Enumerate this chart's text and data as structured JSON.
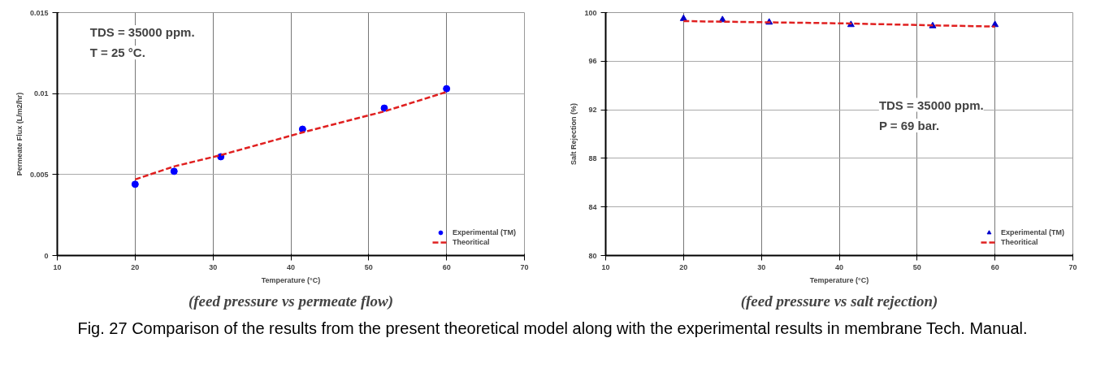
{
  "chart_data": [
    {
      "type": "scatter",
      "xlabel": "Temperature (°C)",
      "ylabel": "Permeate Flux (L/m2/hr)",
      "xlim": [
        10,
        70
      ],
      "xticks": [
        10,
        20,
        30,
        40,
        50,
        60,
        70
      ],
      "ylim": [
        0,
        0.015
      ],
      "yticks": [
        0,
        0.005,
        0.01,
        0.015
      ],
      "grid": true,
      "legend": "bottom right",
      "annotations": [
        "TDS = 35000 ppm.",
        "T = 25 °C.",
        "(feed pressure vs permeate flow)"
      ],
      "series": [
        {
          "name": "Experimental (TM)",
          "marker": "circle",
          "color": "#0000ff",
          "x": [
            20,
            25,
            31,
            41.5,
            52,
            60
          ],
          "values": [
            0.0044,
            0.0052,
            0.0061,
            0.0078,
            0.0091,
            0.0103
          ]
        },
        {
          "name": "Theoritical",
          "type": "line",
          "line_style": "dashed",
          "color": "#e02020",
          "x": [
            20,
            25,
            31,
            41.5,
            52,
            60
          ],
          "values": [
            0.0047,
            0.0055,
            0.0062,
            0.0076,
            0.0089,
            0.0101
          ]
        }
      ]
    },
    {
      "type": "scatter",
      "xlabel": "Temperature (°C)",
      "ylabel": "Salt Rejection (%)",
      "xlim": [
        10,
        70
      ],
      "xticks": [
        10,
        20,
        30,
        40,
        50,
        60,
        70
      ],
      "ylim": [
        80,
        100
      ],
      "yticks": [
        80,
        84,
        88,
        92,
        96,
        100
      ],
      "grid": true,
      "legend": "bottom right",
      "annotations": [
        "TDS = 35000 ppm.",
        "P = 69 bar.",
        "(feed pressure vs salt rejection)",
        "Fig. 27 Comparison of the results from the present theoretical model along with the experimental results in membrane Tech. Manual."
      ],
      "series": [
        {
          "name": "Experimental (TM)",
          "marker": "triangle",
          "color": "#0000cc",
          "x": [
            20,
            25,
            31,
            41.5,
            52,
            60
          ],
          "values": [
            99.5,
            99.4,
            99.2,
            99.0,
            98.9,
            99.0
          ]
        },
        {
          "name": "Theoritical",
          "type": "line",
          "line_style": "dashed",
          "color": "#e02020",
          "x": [
            20,
            25,
            31,
            41.5,
            52,
            60
          ],
          "values": [
            99.3,
            99.25,
            99.2,
            99.1,
            98.95,
            98.85
          ]
        }
      ]
    }
  ]
}
